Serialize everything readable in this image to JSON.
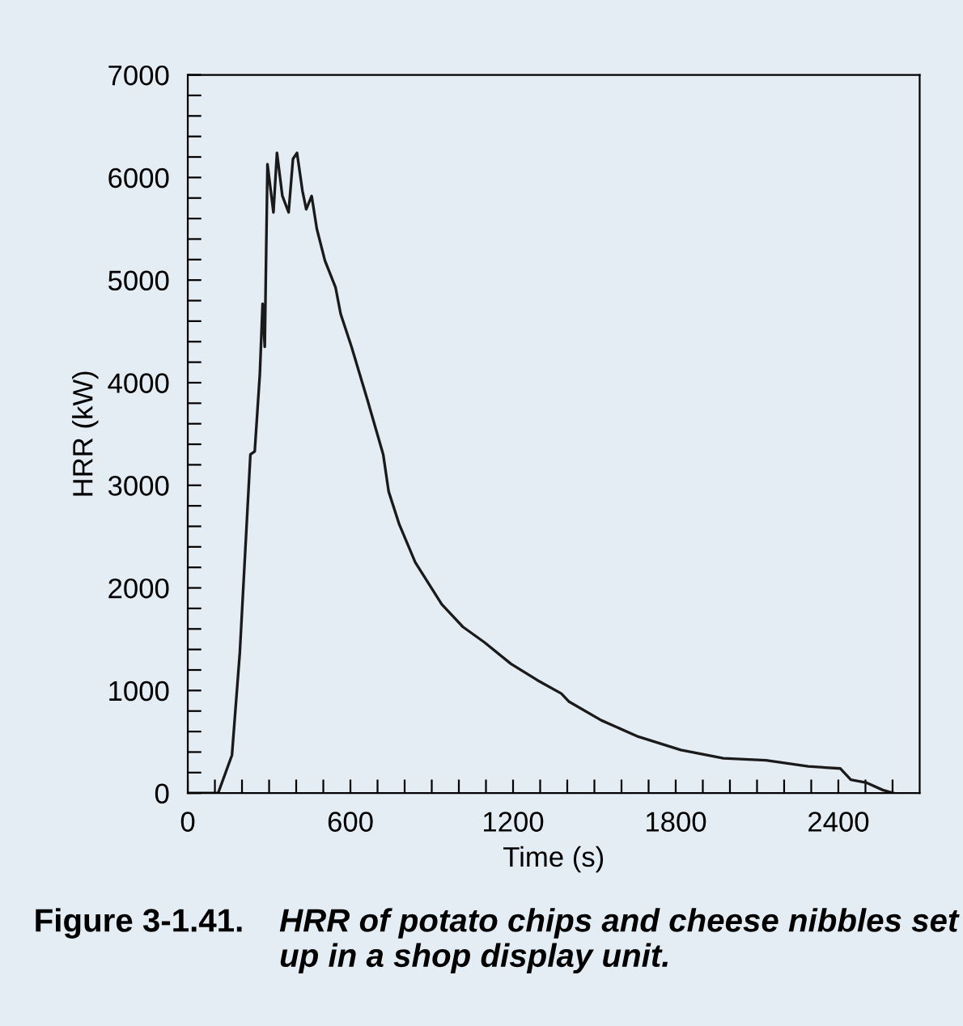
{
  "chart_data": {
    "type": "line",
    "xlabel": "Time (s)",
    "ylabel": "HRR (kW)",
    "annotations": [
      "Figure 3-1.41.",
      "HRR of potato chips and cheese nibbles set up in a shop display unit."
    ],
    "series": [
      {
        "color": "#1a1a1a",
        "x": [
          0,
          112,
          163,
          192,
          231,
          247,
          266,
          276,
          284,
          294,
          316,
          329,
          349,
          372,
          388,
          403,
          423,
          437,
          457,
          476,
          506,
          545,
          564,
          604,
          663,
          721,
          741,
          780,
          839,
          937,
          1015,
          1094,
          1192,
          1290,
          1378,
          1407,
          1525,
          1662,
          1819,
          1976,
          2133,
          2289,
          2407,
          2446,
          2505,
          2564,
          2603
        ],
        "values": [
          0,
          0,
          370,
          1370,
          3300,
          3330,
          4090,
          4770,
          4350,
          6130,
          5660,
          6240,
          5820,
          5660,
          6180,
          6240,
          5870,
          5690,
          5820,
          5500,
          5190,
          4930,
          4670,
          4350,
          3830,
          3300,
          2940,
          2620,
          2250,
          1840,
          1620,
          1470,
          1260,
          1100,
          970,
          890,
          710,
          550,
          420,
          340,
          320,
          260,
          240,
          130,
          100,
          30,
          0
        ]
      }
    ],
    "xlim": [
      0,
      2700
    ],
    "ylim": [
      0,
      7000
    ],
    "xticks": [
      0,
      {
        "value": 100,
        "label": null
      },
      {
        "value": 200,
        "label": null
      },
      {
        "value": 300,
        "label": null
      },
      {
        "value": 400,
        "label": null
      },
      {
        "value": 500,
        "label": null
      },
      600,
      {
        "value": 700,
        "label": null
      },
      {
        "value": 800,
        "label": null
      },
      {
        "value": 900,
        "label": null
      },
      {
        "value": 1000,
        "label": null
      },
      {
        "value": 1100,
        "label": null
      },
      1200,
      {
        "value": 1300,
        "label": null
      },
      {
        "value": 1400,
        "label": null
      },
      {
        "value": 1500,
        "label": null
      },
      {
        "value": 1600,
        "label": null
      },
      {
        "value": 1700,
        "label": null
      },
      1800,
      {
        "value": 1900,
        "label": null
      },
      {
        "value": 2000,
        "label": null
      },
      {
        "value": 2100,
        "label": null
      },
      {
        "value": 2200,
        "label": null
      },
      {
        "value": 2300,
        "label": null
      },
      2400,
      {
        "value": 2500,
        "label": null
      },
      {
        "value": 2600,
        "label": null
      }
    ],
    "yticks": [
      0,
      {
        "value": 200,
        "label": null
      },
      {
        "value": 400,
        "label": null
      },
      {
        "value": 600,
        "label": null
      },
      {
        "value": 800,
        "label": null
      },
      1000,
      {
        "value": 1200,
        "label": null
      },
      {
        "value": 1400,
        "label": null
      },
      {
        "value": 1600,
        "label": null
      },
      {
        "value": 1800,
        "label": null
      },
      2000,
      {
        "value": 2200,
        "label": null
      },
      {
        "value": 2400,
        "label": null
      },
      {
        "value": 2600,
        "label": null
      },
      {
        "value": 2800,
        "label": null
      },
      3000,
      {
        "value": 3200,
        "label": null
      },
      {
        "value": 3400,
        "label": null
      },
      {
        "value": 3600,
        "label": null
      },
      {
        "value": 3800,
        "label": null
      },
      4000,
      {
        "value": 4200,
        "label": null
      },
      {
        "value": 4400,
        "label": null
      },
      {
        "value": 4600,
        "label": null
      },
      {
        "value": 4800,
        "label": null
      },
      5000,
      {
        "value": 5200,
        "label": null
      },
      {
        "value": 5400,
        "label": null
      },
      {
        "value": 5600,
        "label": null
      },
      {
        "value": 5800,
        "label": null
      },
      6000,
      {
        "value": 6200,
        "label": null
      },
      {
        "value": 6400,
        "label": null
      },
      {
        "value": 6600,
        "label": null
      },
      {
        "value": 6800,
        "label": null
      },
      7000
    ],
    "grid": false,
    "marker": "none",
    "line_style": "solid"
  }
}
